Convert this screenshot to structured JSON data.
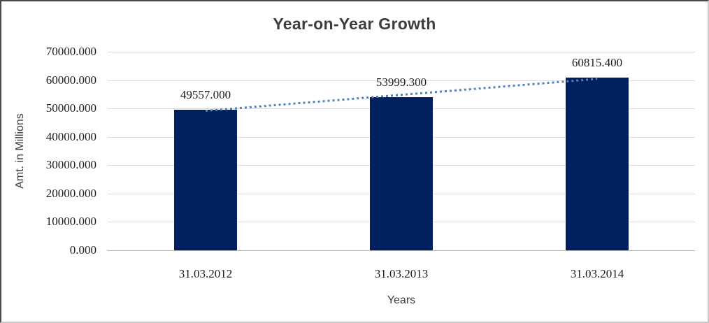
{
  "chart_data": {
    "type": "bar",
    "title": "Year-on-Year Growth",
    "categories": [
      "31.03.2012",
      "31.03.2013",
      "31.03.2014"
    ],
    "values": [
      49557.0,
      53999.3,
      60815.4
    ],
    "value_labels": [
      "49557.000",
      "53999.300",
      "60815.400"
    ],
    "xlabel": "Years",
    "ylabel": "Amt. in Millions",
    "ylim": [
      0,
      70000
    ],
    "y_tick_step": 10000,
    "y_tick_labels": [
      "0.000",
      "10000.000",
      "20000.000",
      "30000.000",
      "40000.000",
      "50000.000",
      "60000.000",
      "70000.000"
    ],
    "grid": true,
    "legend": "none",
    "trendline": {
      "type": "linear",
      "style": "dotted"
    },
    "colors": {
      "bar": "#002060",
      "trendline": "#4f81bd",
      "gridline": "#dcdcdc",
      "axis_line": "#b3b3b3",
      "number_text": "#1c1c1c",
      "title_text": "#3d3d3d"
    }
  }
}
